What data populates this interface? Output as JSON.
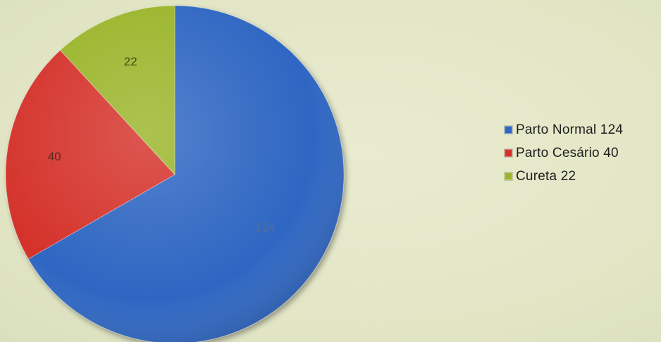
{
  "chart_data": {
    "type": "pie",
    "title": "",
    "legend_position": "right",
    "slices": [
      {
        "label": "Parto Normal",
        "value": 124,
        "data_label": "124",
        "legend_label": "Parto Normal 124",
        "color": "#2e66c2"
      },
      {
        "label": "Parto Cesário",
        "value": 40,
        "data_label": "40",
        "legend_label": "Parto Cesário 40",
        "color": "#d4302c"
      },
      {
        "label": "Cureta",
        "value": 22,
        "data_label": "22",
        "legend_label": "Cureta 22",
        "color": "#9ab52c"
      }
    ]
  }
}
